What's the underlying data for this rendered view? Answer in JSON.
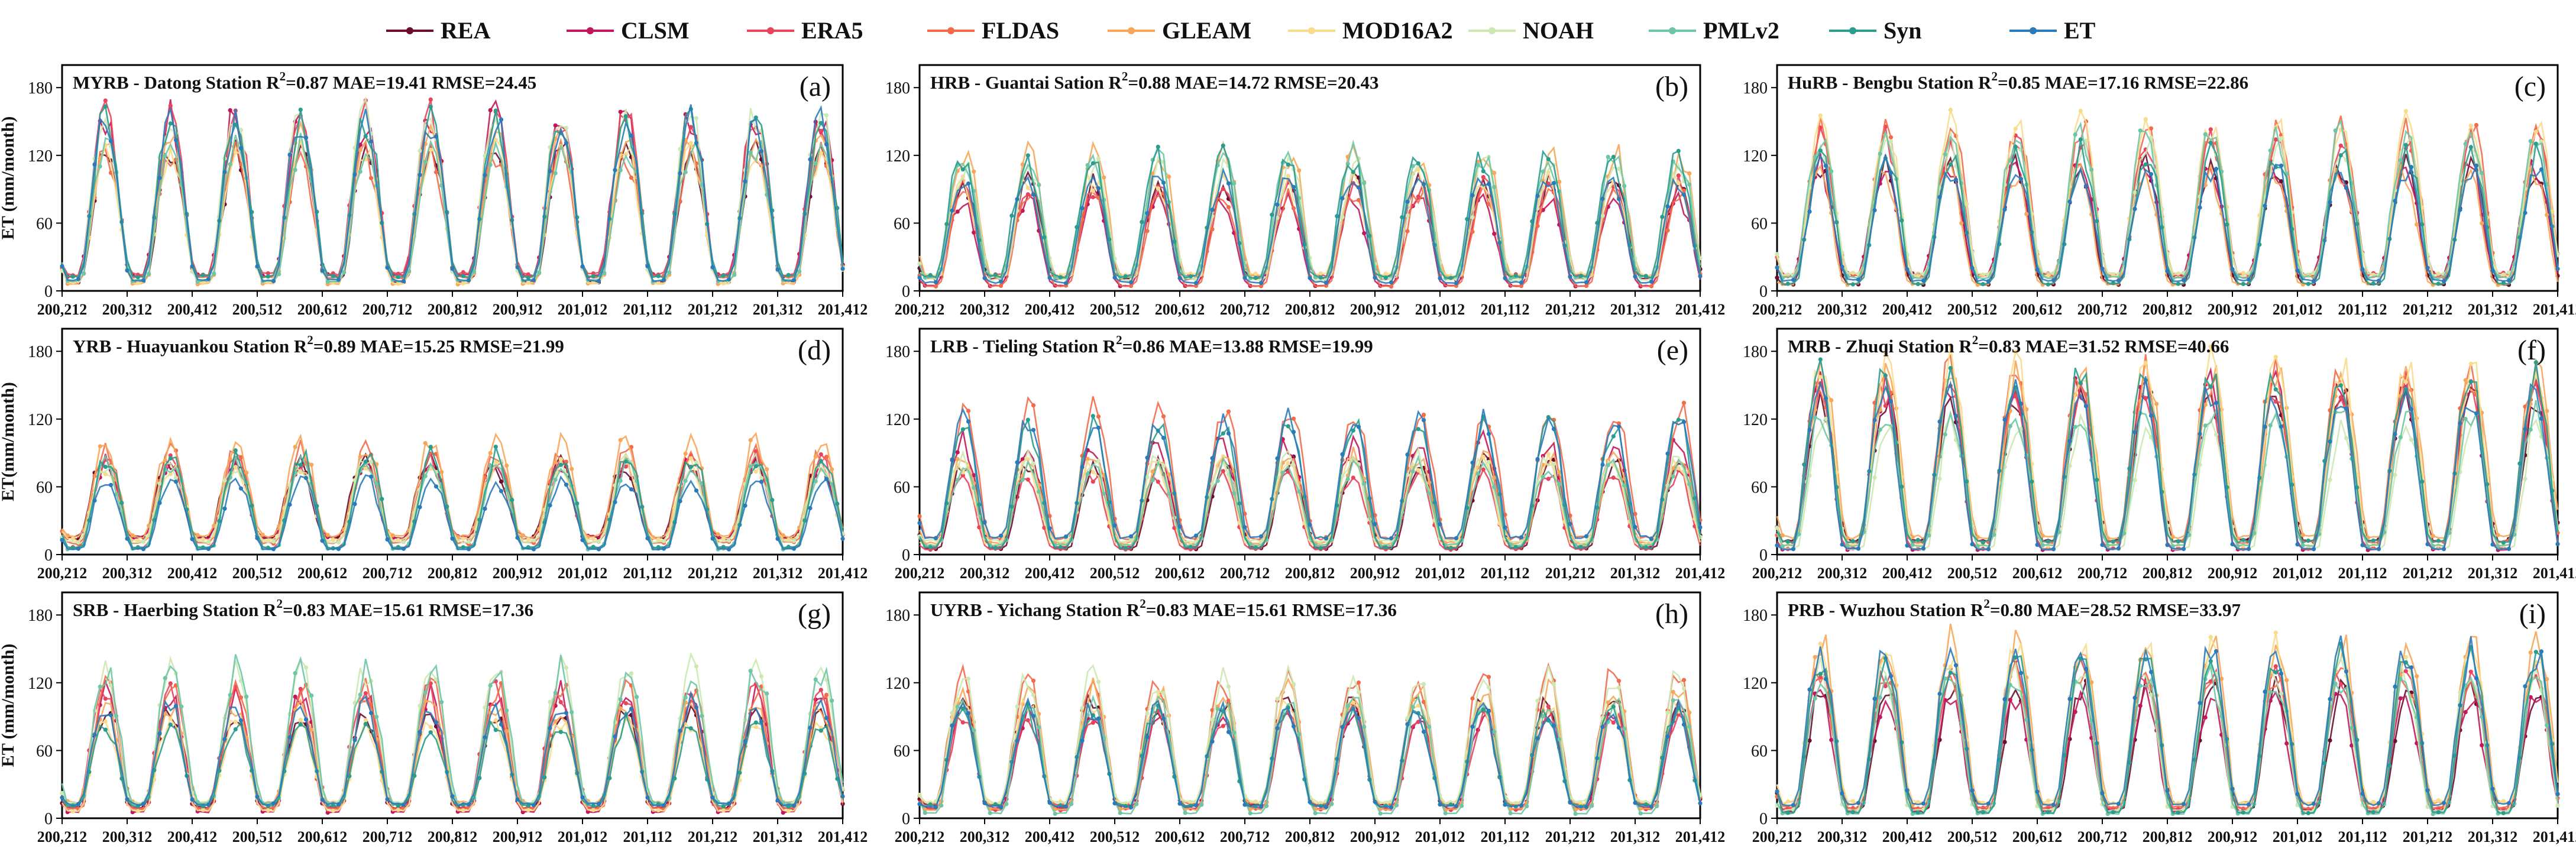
{
  "legend": [
    {
      "name": "REA",
      "color": "#6b0d2e"
    },
    {
      "name": "CLSM",
      "color": "#c2185b"
    },
    {
      "name": "ERA5",
      "color": "#e8455c"
    },
    {
      "name": "FLDAS",
      "color": "#f26b4a"
    },
    {
      "name": "GLEAM",
      "color": "#f7a65a"
    },
    {
      "name": "MOD16A2",
      "color": "#f8dc8c"
    },
    {
      "name": "NOAH",
      "color": "#cde8b3"
    },
    {
      "name": "PMLv2",
      "color": "#6fc6a6"
    },
    {
      "name": "Syn",
      "color": "#2a9d8f"
    },
    {
      "name": "ET",
      "color": "#2b7bba"
    }
  ],
  "axis": {
    "ylabel_a": "ET (mm/month)",
    "ylabel_b": "ET(mm/month)",
    "yticks": [
      0,
      60,
      120,
      180
    ],
    "ylim": [
      0,
      200
    ],
    "xticks": [
      "200,212",
      "200,312",
      "200,412",
      "200,512",
      "200,612",
      "200,712",
      "200,812",
      "200,912",
      "201,012",
      "201,112",
      "201,212",
      "201,312",
      "201,412"
    ]
  },
  "chart_data": [
    {
      "type": "line",
      "label": "(a)",
      "title": "MYRB - Datong Station",
      "r2": "0.87",
      "mae": "MAE=19.41",
      "rmse": "RMSE=24.45",
      "peak": 130,
      "amp_spread": 25,
      "ylabel": "ET (mm/month)",
      "seed": 11
    },
    {
      "type": "line",
      "label": "(b)",
      "title": "HRB - Guantai Sation",
      "r2": "0.88",
      "mae": "MAE=14.72",
      "rmse": "RMSE=20.43",
      "peak": 95,
      "amp_spread": 20,
      "ylabel": "",
      "seed": 23
    },
    {
      "type": "line",
      "label": "(c)",
      "title": "HuRB - Bengbu Station",
      "r2": "0.85",
      "mae": "MAE=17.16",
      "rmse": "RMSE=22.86",
      "peak": 115,
      "amp_spread": 22,
      "ylabel": "",
      "seed": 37
    },
    {
      "type": "line",
      "label": "(d)",
      "title": "YRB - Huayuankou Station",
      "r2": "0.89",
      "mae": "MAE=15.25",
      "rmse": "RMSE=21.99",
      "peak": 72,
      "amp_spread": 12,
      "ylabel": "ET(mm/month)",
      "seed": 41
    },
    {
      "type": "line",
      "label": "(e)",
      "title": "LRB - Tieling Station",
      "r2": "0.86",
      "mae": "MAE=13.88",
      "rmse": "RMSE=19.99",
      "peak": 88,
      "amp_spread": 25,
      "ylabel": "",
      "seed": 53
    },
    {
      "type": "line",
      "label": "(f)",
      "title": "MRB - Zhuqi Station",
      "r2": "0.83",
      "mae": "MAE=31.52",
      "rmse": "RMSE=40.66",
      "peak": 140,
      "amp_spread": 28,
      "ylabel": "",
      "seed": 67
    },
    {
      "type": "line",
      "label": "(g)",
      "title": "SRB - Haerbing Station",
      "r2": "0.83",
      "mae": "MAE=15.61",
      "rmse": "RMSE=17.36",
      "peak": 95,
      "amp_spread": 25,
      "ylabel": "ET (mm/month)",
      "seed": 71
    },
    {
      "type": "line",
      "label": "(h)",
      "title": "UYRB - Yichang Station",
      "r2": "0.83",
      "mae": "MAE=15.61",
      "rmse": "RMSE=17.36",
      "peak": 100,
      "amp_spread": 18,
      "ylabel": "",
      "seed": 83
    },
    {
      "type": "line",
      "label": "(i)",
      "title": "PRB - Wuzhou Station",
      "r2": "0.80",
      "mae": "MAE=28.52",
      "rmse": "RMSE=33.97",
      "peak": 120,
      "amp_spread": 25,
      "ylabel": "",
      "seed": 97
    }
  ]
}
